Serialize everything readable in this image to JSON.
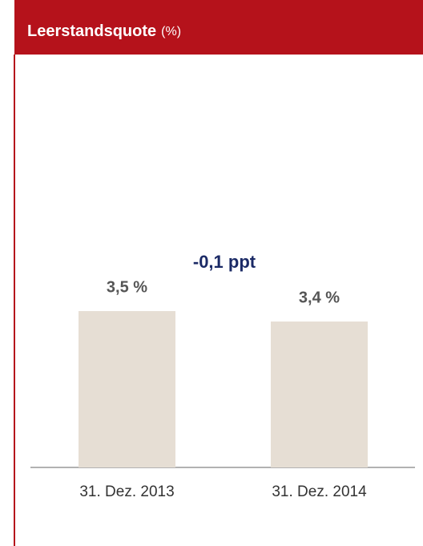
{
  "chart_data": {
    "type": "bar",
    "title": "Leerstandsquote",
    "subtitle": "(%)",
    "annotation": "-0,1 ppt",
    "categories": [
      "31. Dez. 2013",
      "31. Dez. 2014"
    ],
    "values": [
      3.5,
      3.4
    ],
    "value_labels": [
      "3,5 %",
      "3,4 %"
    ],
    "color": "#e6ded4",
    "ylim": [
      2,
      6
    ]
  }
}
